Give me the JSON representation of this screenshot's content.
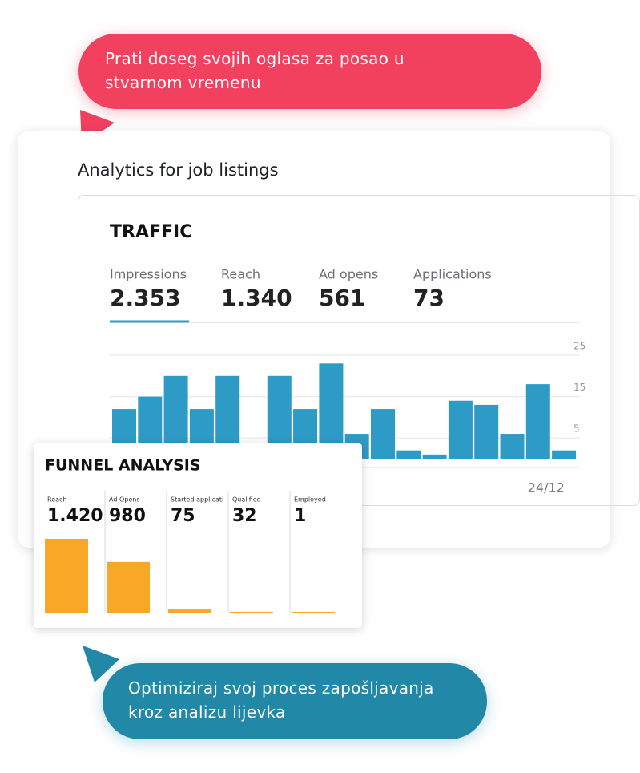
{
  "callout_top": "Prati doseg svojih oglasa za posao u stvarnom vremenu",
  "callout_bottom": "Optimiziraj svoj proces zapošljavanja kroz analizu lijevka",
  "panel_title": "Analytics for job listings",
  "chart_data": [
    {
      "type": "bar",
      "title": "TRAFFIC",
      "metrics": [
        {
          "name": "Impressions",
          "value": 2353,
          "value_label": "2.353"
        },
        {
          "name": "Reach",
          "value": 1340,
          "value_label": "1.340"
        },
        {
          "name": "Ad opens",
          "value": 561,
          "value_label": "561"
        },
        {
          "name": "Applications",
          "value": 73,
          "value_label": "73"
        }
      ],
      "categories": [
        null,
        null,
        null,
        null,
        null,
        null,
        null,
        null,
        null,
        null,
        null,
        null,
        null,
        null,
        null,
        null,
        "24/12",
        null
      ],
      "values": [
        12,
        15,
        20,
        12,
        20,
        0,
        20,
        12,
        23,
        6,
        12,
        2,
        1,
        14,
        13,
        6,
        18,
        2
      ],
      "color": "#2e9bc6",
      "ylim": [
        0,
        25
      ],
      "yticks": [
        5,
        15,
        25
      ],
      "grid": true
    },
    {
      "type": "funnel",
      "title": "FUNNEL ANALYSIS",
      "categories": [
        "Reach",
        "Ad Opens",
        "Started applicati",
        "Qualified",
        "Employed"
      ],
      "values": [
        1420,
        980,
        75,
        32,
        1
      ],
      "value_labels": [
        "1.420",
        "980",
        "75",
        "32",
        "1"
      ],
      "color": "#f8a826"
    }
  ]
}
